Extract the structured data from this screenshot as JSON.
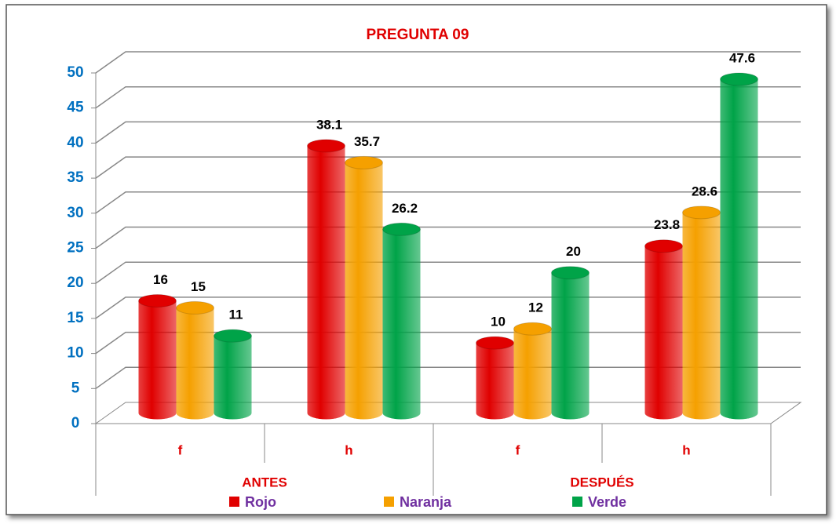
{
  "chart_data": {
    "type": "bar3d",
    "title": "PREGUNTA 09",
    "categories": [
      "f",
      "h",
      "f",
      "h"
    ],
    "groups": [
      "ANTES",
      "DESPUÉS"
    ],
    "series": [
      {
        "name": "Rojo",
        "color": "#e00000",
        "values": [
          16,
          38.1,
          10,
          23.8
        ]
      },
      {
        "name": "Naranja",
        "color": "#f5a000",
        "values": [
          15,
          35.7,
          12,
          28.6
        ]
      },
      {
        "name": "Verde",
        "color": "#00a348",
        "values": [
          11,
          26.2,
          20,
          47.6
        ]
      }
    ],
    "ylim": [
      0,
      50
    ],
    "yticks": [
      0,
      5,
      10,
      15,
      20,
      25,
      30,
      35,
      40,
      45,
      50
    ],
    "grid": true,
    "legend": "bottom"
  }
}
